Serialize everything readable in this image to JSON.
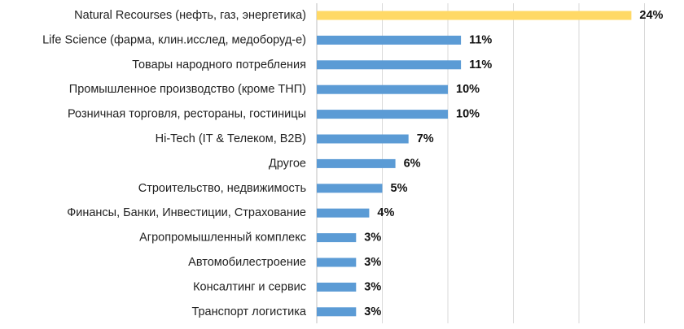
{
  "chart_data": {
    "type": "bar",
    "orientation": "horizontal",
    "categories": [
      "Natural Recourses (нефть, газ, энергетика)",
      "Life Science (фарма, клин.исслед, медоборуд-е)",
      "Товары народного потребления",
      "Промышленное производство (кроме ТНП)",
      "Розничная торговля, рестораны, гостиницы",
      "Hi-Tech (IT & Телеком, B2B)",
      "Другое",
      "Строительство, недвижимость",
      "Финансы, Банки, Инвестиции, Страхование",
      "Агропромышленный комплекс",
      "Автомобилестроение",
      "Консалтинг и сервис",
      "Транспорт логистика"
    ],
    "values": [
      24,
      11,
      11,
      10,
      10,
      7,
      6,
      5,
      4,
      3,
      3,
      3,
      3
    ],
    "value_labels": [
      "24%",
      "11%",
      "11%",
      "10%",
      "10%",
      "7%",
      "6%",
      "5%",
      "4%",
      "3%",
      "3%",
      "3%",
      "3%"
    ],
    "unit": "%",
    "xlim": [
      0,
      25
    ],
    "grid": true,
    "legend": "none",
    "title": "",
    "xlabel": "",
    "ylabel": ""
  },
  "colors": {
    "highlight_bar": "#FFD966",
    "bar": "#5B9BD5",
    "grid": "#D9D9D9"
  }
}
